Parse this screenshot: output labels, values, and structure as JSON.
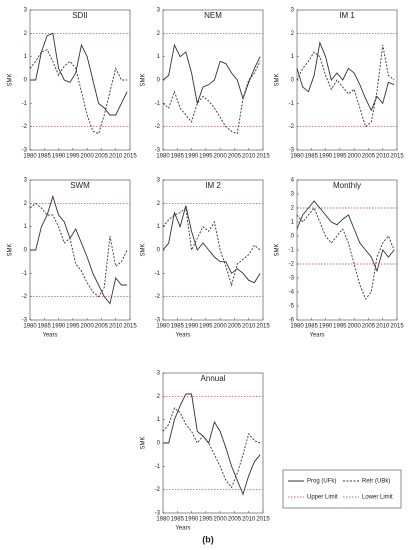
{
  "chart_data": [
    {
      "type": "line",
      "title": "SDII",
      "ylabel": "SMK",
      "x": [
        1980,
        1982,
        1984,
        1986,
        1988,
        1990,
        1992,
        1994,
        1996,
        1998,
        2000,
        2002,
        2004,
        2006,
        2008,
        2010,
        2012,
        2014
      ],
      "prog": [
        0,
        0,
        1.2,
        1.9,
        2.0,
        0.5,
        0.0,
        -0.1,
        0.3,
        1.5,
        1.0,
        0.0,
        -1.0,
        -1.2,
        -1.5,
        -1.5,
        -1.0,
        -0.5
      ],
      "retr": [
        0.5,
        0.8,
        1.2,
        1.3,
        0.8,
        0.2,
        0.6,
        0.8,
        0.5,
        -0.5,
        -1.5,
        -2.2,
        -2.3,
        -1.5,
        -0.5,
        0.5,
        0,
        0
      ],
      "limits": [
        2,
        -2
      ],
      "xlim": [
        1980,
        2015
      ],
      "xticks": [
        1980,
        1985,
        1990,
        1995,
        2000,
        2005,
        2010,
        2015
      ],
      "ylim": [
        -3,
        3
      ],
      "yticks": [
        -3,
        -2,
        -1,
        0,
        1,
        2,
        3
      ]
    },
    {
      "type": "line",
      "title": "NEM",
      "ylabel": "SMK",
      "x": [
        1980,
        1982,
        1984,
        1986,
        1988,
        1990,
        1992,
        1994,
        1996,
        1998,
        2000,
        2002,
        2004,
        2006,
        2008,
        2010,
        2012,
        2014
      ],
      "prog": [
        0,
        0.2,
        1.5,
        1.0,
        1.2,
        0.3,
        -1.0,
        -0.3,
        -0.2,
        0.0,
        0.8,
        0.7,
        0.3,
        0.0,
        -0.8,
        -0.1,
        0.5,
        1.0
      ],
      "retr": [
        -1.0,
        -1.2,
        -0.5,
        -1.2,
        -1.5,
        -1.8,
        -1.0,
        -0.7,
        -0.9,
        -1.2,
        -1.6,
        -2.0,
        -2.2,
        -2.3,
        -0.8,
        0,
        0.3,
        0.8
      ],
      "limits": [
        2,
        -2
      ],
      "xlim": [
        1980,
        2015
      ],
      "xticks": [
        1980,
        1985,
        1990,
        1995,
        2000,
        2005,
        2010,
        2015
      ],
      "ylim": [
        -3,
        3
      ],
      "yticks": [
        -3,
        -2,
        -1,
        0,
        1,
        2,
        3
      ]
    },
    {
      "type": "line",
      "title": "IM 1",
      "ylabel": "SMK",
      "x": [
        1980,
        1982,
        1984,
        1986,
        1988,
        1990,
        1992,
        1994,
        1996,
        1998,
        2000,
        2002,
        2004,
        2006,
        2008,
        2010,
        2012,
        2014
      ],
      "prog": [
        0.5,
        -0.3,
        -0.5,
        0.2,
        1.6,
        1.0,
        0.0,
        0.3,
        0.0,
        0.5,
        0.3,
        -0.2,
        -0.8,
        -1.3,
        -0.7,
        -1.0,
        -0.1,
        -0.2
      ],
      "retr": [
        0,
        0.5,
        0.8,
        1.2,
        1.0,
        0.2,
        -0.4,
        0.0,
        -0.3,
        -0.6,
        -0.4,
        -1.2,
        -2.0,
        -1.8,
        -0.5,
        1.5,
        0.2,
        0
      ],
      "limits": [
        2,
        -2
      ],
      "xlim": [
        1980,
        2015
      ],
      "xticks": [
        1980,
        1985,
        1990,
        1995,
        2000,
        2005,
        2010,
        2015
      ],
      "ylim": [
        -3,
        3
      ],
      "yticks": [
        -3,
        -2,
        -1,
        0,
        1,
        2,
        3
      ]
    },
    {
      "type": "line",
      "title": "SWM",
      "ylabel": "SMK",
      "xlabel": "Years",
      "x": [
        1980,
        1982,
        1984,
        1986,
        1988,
        1990,
        1992,
        1994,
        1996,
        1998,
        2000,
        2002,
        2004,
        2006,
        2008,
        2010,
        2012,
        2014
      ],
      "prog": [
        0,
        0,
        1.0,
        1.5,
        2.3,
        1.5,
        1.2,
        0.5,
        0.9,
        0.3,
        -0.3,
        -1.0,
        -1.5,
        -2.0,
        -2.3,
        -1.2,
        -1.5,
        -1.5
      ],
      "retr": [
        1.8,
        2.0,
        1.8,
        1.5,
        1.5,
        1.0,
        0.3,
        0.5,
        -0.6,
        -0.9,
        -1.4,
        -1.8,
        -2.0,
        -1.6,
        0.6,
        -0.7,
        -0.5,
        0
      ],
      "limits": [
        2,
        -2
      ],
      "xlim": [
        1980,
        2015
      ],
      "xticks": [
        1980,
        1985,
        1990,
        1995,
        2000,
        2005,
        2010,
        2015
      ],
      "ylim": [
        -3,
        3
      ],
      "yticks": [
        -3,
        -2,
        -1,
        0,
        1,
        2,
        3
      ]
    },
    {
      "type": "line",
      "title": "IM 2",
      "ylabel": "SMK",
      "xlabel": "Years",
      "x": [
        1980,
        1982,
        1984,
        1986,
        1988,
        1990,
        1992,
        1994,
        1996,
        1998,
        2000,
        2002,
        2004,
        2006,
        2008,
        2010,
        2012,
        2014
      ],
      "prog": [
        0,
        0.3,
        1.6,
        1.0,
        1.9,
        0.8,
        0.0,
        0.3,
        0.0,
        -0.3,
        -0.5,
        -0.5,
        -1.0,
        -0.8,
        -1.0,
        -1.3,
        -1.4,
        -1.0
      ],
      "retr": [
        1.0,
        1.3,
        1.5,
        1.6,
        1.8,
        0.0,
        0.5,
        1.0,
        0.8,
        1.2,
        0.0,
        -0.7,
        -1.5,
        -0.6,
        -0.4,
        -0.2,
        0.2,
        0
      ],
      "limits": [
        2,
        -2
      ],
      "xlim": [
        1980,
        2015
      ],
      "xticks": [
        1980,
        1985,
        1990,
        1995,
        2000,
        2005,
        2010,
        2015
      ],
      "ylim": [
        -3,
        3
      ],
      "yticks": [
        -3,
        -2,
        -1,
        0,
        1,
        2,
        3
      ]
    },
    {
      "type": "line",
      "title": "Monthly",
      "ylabel": "SMK",
      "xlabel": "Years",
      "x": [
        1980,
        1982,
        1984,
        1986,
        1988,
        1990,
        1992,
        1994,
        1996,
        1998,
        2000,
        2002,
        2004,
        2006,
        2008,
        2010,
        2012,
        2014
      ],
      "prog": [
        0.5,
        1.5,
        2.0,
        2.5,
        2.0,
        1.5,
        1.0,
        0.8,
        1.2,
        1.5,
        0.5,
        -0.5,
        -1.0,
        -1.5,
        -2.5,
        -1.0,
        -1.5,
        -1.0
      ],
      "retr": [
        1.5,
        1.0,
        1.5,
        2.0,
        1.0,
        0.0,
        -0.5,
        0.0,
        0.5,
        -0.5,
        -2.0,
        -3.5,
        -4.5,
        -4.0,
        -1.5,
        -0.5,
        0.0,
        -1.0
      ],
      "limits": [
        2,
        -2
      ],
      "xlim": [
        1980,
        2015
      ],
      "xticks": [
        1980,
        1985,
        1990,
        1995,
        2000,
        2005,
        2010,
        2015
      ],
      "ylim": [
        -6,
        4
      ],
      "yticks": [
        -6,
        -5,
        -4,
        -3,
        -2,
        -1,
        0,
        1,
        2,
        3,
        4
      ]
    },
    {
      "type": "line",
      "title": "Annual",
      "ylabel": "SMK",
      "xlabel": "Years",
      "x": [
        1980,
        1982,
        1984,
        1986,
        1988,
        1990,
        1992,
        1994,
        1996,
        1998,
        2000,
        2002,
        2004,
        2006,
        2008,
        2010,
        2012,
        2014
      ],
      "prog": [
        0,
        0,
        1.0,
        1.6,
        2.1,
        2.1,
        0.5,
        0.3,
        0.0,
        0.9,
        0.5,
        -0.2,
        -1.0,
        -1.6,
        -2.2,
        -1.4,
        -0.8,
        -0.5
      ],
      "retr": [
        0.5,
        0.8,
        1.5,
        1.3,
        0.8,
        0.5,
        0.0,
        0.3,
        0.0,
        -0.5,
        -1.0,
        -1.6,
        -1.9,
        -1.3,
        -0.5,
        0.4,
        0.1,
        0
      ],
      "limits": [
        2,
        -2
      ],
      "xlim": [
        1980,
        2015
      ],
      "xticks": [
        1980,
        1985,
        1990,
        1995,
        2000,
        2005,
        2010,
        2015
      ],
      "ylim": [
        -3,
        3
      ],
      "yticks": [
        -3,
        -2,
        -1,
        0,
        1,
        2,
        3
      ]
    }
  ],
  "legend": {
    "prog": "Prog (UFk)",
    "retr": "Retr (UBk)",
    "upper": "Upper Limit",
    "lower": "Lower Limit"
  },
  "caption": "(b)"
}
